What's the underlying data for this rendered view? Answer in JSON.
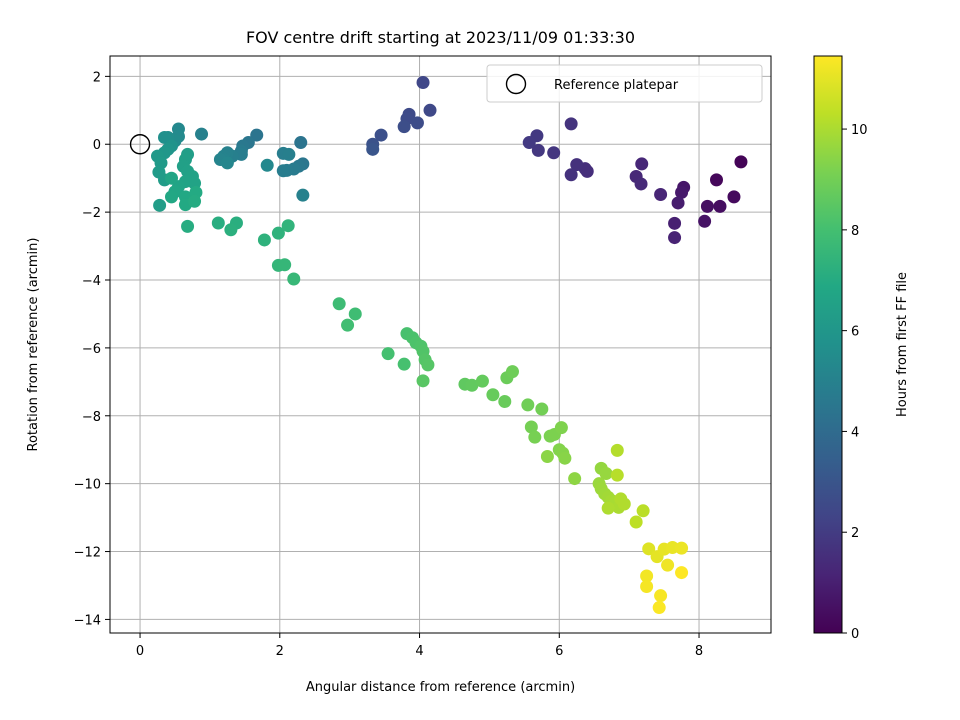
{
  "chart_data": {
    "type": "scatter",
    "title": "FOV centre drift starting at 2023/11/09 01:33:30",
    "xlabel": "Angular distance from reference (arcmin)",
    "ylabel": "Rotation from reference (arcmin)",
    "xlim": [
      -0.43,
      9.03
    ],
    "ylim": [
      -14.4,
      2.6
    ],
    "xticks": [
      0,
      2,
      4,
      6,
      8
    ],
    "yticks": [
      2,
      0,
      -2,
      -4,
      -6,
      -8,
      -10,
      -12,
      -14
    ],
    "xtick_labels": [
      "0",
      "2",
      "4",
      "6",
      "8"
    ],
    "ytick_labels": [
      "2",
      "0",
      "−2",
      "−4",
      "−6",
      "−8",
      "−10",
      "−12",
      "−14"
    ],
    "grid": true,
    "legend": {
      "position": "upper right",
      "entries": [
        "Reference platepar"
      ]
    },
    "reference_point": {
      "x": 0,
      "y": 0,
      "label": "Reference platepar"
    },
    "colorbar": {
      "label": "Hours from first FF file",
      "colormap": "viridis",
      "range": [
        0,
        11.45
      ],
      "ticks": [
        0,
        2,
        4,
        6,
        8,
        10
      ],
      "tick_labels": [
        "0",
        "2",
        "4",
        "6",
        "8",
        "10"
      ]
    },
    "points": [
      {
        "x": 8.6,
        "y": -0.52,
        "c": 0.1
      },
      {
        "x": 8.25,
        "y": -1.05,
        "c": 0.2
      },
      {
        "x": 8.5,
        "y": -1.55,
        "c": 0.3
      },
      {
        "x": 8.3,
        "y": -1.83,
        "c": 0.4
      },
      {
        "x": 8.12,
        "y": -1.83,
        "c": 0.5
      },
      {
        "x": 8.08,
        "y": -2.27,
        "c": 0.6
      },
      {
        "x": 7.78,
        "y": -1.27,
        "c": 0.7
      },
      {
        "x": 7.75,
        "y": -1.42,
        "c": 0.8
      },
      {
        "x": 7.7,
        "y": -1.73,
        "c": 0.9
      },
      {
        "x": 7.65,
        "y": -2.33,
        "c": 1.0
      },
      {
        "x": 7.65,
        "y": -2.75,
        "c": 1.1
      },
      {
        "x": 7.45,
        "y": -1.48,
        "c": 1.2
      },
      {
        "x": 7.18,
        "y": -0.58,
        "c": 1.25
      },
      {
        "x": 7.1,
        "y": -0.95,
        "c": 1.3
      },
      {
        "x": 7.17,
        "y": -1.17,
        "c": 1.35
      },
      {
        "x": 6.4,
        "y": -0.8,
        "c": 1.5
      },
      {
        "x": 6.37,
        "y": -0.72,
        "c": 1.55
      },
      {
        "x": 6.25,
        "y": -0.6,
        "c": 1.6
      },
      {
        "x": 6.17,
        "y": -0.9,
        "c": 1.65
      },
      {
        "x": 6.17,
        "y": 0.6,
        "c": 1.7
      },
      {
        "x": 5.92,
        "y": -0.25,
        "c": 1.8
      },
      {
        "x": 5.7,
        "y": -0.18,
        "c": 1.85
      },
      {
        "x": 5.68,
        "y": 0.25,
        "c": 1.9
      },
      {
        "x": 5.57,
        "y": 0.05,
        "c": 1.95
      },
      {
        "x": 4.05,
        "y": 1.82,
        "c": 2.4
      },
      {
        "x": 4.15,
        "y": 1.0,
        "c": 2.5
      },
      {
        "x": 3.85,
        "y": 0.88,
        "c": 2.55
      },
      {
        "x": 3.82,
        "y": 0.75,
        "c": 2.6
      },
      {
        "x": 3.97,
        "y": 0.63,
        "c": 2.65
      },
      {
        "x": 3.78,
        "y": 0.52,
        "c": 2.7
      },
      {
        "x": 3.45,
        "y": 0.27,
        "c": 2.8
      },
      {
        "x": 3.33,
        "y": 0.0,
        "c": 2.9
      },
      {
        "x": 3.33,
        "y": -0.15,
        "c": 3.0
      },
      {
        "x": 2.3,
        "y": 0.05,
        "c": 4.4
      },
      {
        "x": 2.33,
        "y": -0.58,
        "c": 4.5
      },
      {
        "x": 2.27,
        "y": -0.65,
        "c": 4.6
      },
      {
        "x": 2.2,
        "y": -0.73,
        "c": 4.7
      },
      {
        "x": 2.1,
        "y": -0.77,
        "c": 4.75
      },
      {
        "x": 2.05,
        "y": -0.78,
        "c": 4.8
      },
      {
        "x": 2.05,
        "y": -0.27,
        "c": 4.85
      },
      {
        "x": 2.13,
        "y": -0.3,
        "c": 4.9
      },
      {
        "x": 2.33,
        "y": -1.5,
        "c": 5.0
      },
      {
        "x": 1.67,
        "y": 0.27,
        "c": 4.4
      },
      {
        "x": 1.55,
        "y": 0.05,
        "c": 4.5
      },
      {
        "x": 1.47,
        "y": -0.05,
        "c": 4.6
      },
      {
        "x": 1.45,
        "y": -0.2,
        "c": 4.7
      },
      {
        "x": 1.45,
        "y": -0.3,
        "c": 4.8
      },
      {
        "x": 1.32,
        "y": -0.35,
        "c": 4.9
      },
      {
        "x": 1.25,
        "y": -0.25,
        "c": 5.0
      },
      {
        "x": 1.2,
        "y": -0.35,
        "c": 5.05
      },
      {
        "x": 1.2,
        "y": -0.45,
        "c": 5.1
      },
      {
        "x": 1.15,
        "y": -0.45,
        "c": 5.15
      },
      {
        "x": 1.25,
        "y": -0.55,
        "c": 5.2
      },
      {
        "x": 1.82,
        "y": -0.62,
        "c": 5.3
      },
      {
        "x": 0.88,
        "y": 0.3,
        "c": 5.0
      },
      {
        "x": 0.55,
        "y": 0.45,
        "c": 5.3
      },
      {
        "x": 0.55,
        "y": 0.23,
        "c": 5.4
      },
      {
        "x": 0.5,
        "y": 0.1,
        "c": 5.5
      },
      {
        "x": 0.4,
        "y": 0.2,
        "c": 5.6
      },
      {
        "x": 0.35,
        "y": 0.2,
        "c": 5.7
      },
      {
        "x": 0.45,
        "y": -0.05,
        "c": 5.8
      },
      {
        "x": 0.4,
        "y": -0.15,
        "c": 5.9
      },
      {
        "x": 0.35,
        "y": -0.25,
        "c": 6.0
      },
      {
        "x": 0.25,
        "y": -0.35,
        "c": 6.1
      },
      {
        "x": 0.3,
        "y": -0.55,
        "c": 6.15
      },
      {
        "x": 0.27,
        "y": -0.82,
        "c": 6.2
      },
      {
        "x": 0.35,
        "y": -1.05,
        "c": 6.25
      },
      {
        "x": 0.28,
        "y": -1.8,
        "c": 6.3
      },
      {
        "x": 0.68,
        "y": -0.3,
        "c": 6.35
      },
      {
        "x": 0.65,
        "y": -0.45,
        "c": 6.4
      },
      {
        "x": 0.62,
        "y": -0.65,
        "c": 6.45
      },
      {
        "x": 0.68,
        "y": -0.8,
        "c": 6.5
      },
      {
        "x": 0.75,
        "y": -0.95,
        "c": 6.55
      },
      {
        "x": 0.78,
        "y": -1.15,
        "c": 6.6
      },
      {
        "x": 0.65,
        "y": -1.1,
        "c": 6.6
      },
      {
        "x": 0.55,
        "y": -1.25,
        "c": 6.65
      },
      {
        "x": 0.45,
        "y": -1.0,
        "c": 6.7
      },
      {
        "x": 0.5,
        "y": -1.4,
        "c": 6.75
      },
      {
        "x": 0.45,
        "y": -1.55,
        "c": 6.8
      },
      {
        "x": 0.65,
        "y": -1.55,
        "c": 6.85
      },
      {
        "x": 0.65,
        "y": -1.78,
        "c": 6.9
      },
      {
        "x": 0.8,
        "y": -1.42,
        "c": 6.95
      },
      {
        "x": 0.78,
        "y": -1.68,
        "c": 7.0
      },
      {
        "x": 0.68,
        "y": -2.42,
        "c": 7.05
      },
      {
        "x": 1.12,
        "y": -2.32,
        "c": 7.1
      },
      {
        "x": 1.38,
        "y": -2.32,
        "c": 7.15
      },
      {
        "x": 1.3,
        "y": -2.52,
        "c": 7.2
      },
      {
        "x": 1.78,
        "y": -2.82,
        "c": 7.3
      },
      {
        "x": 1.98,
        "y": -2.62,
        "c": 7.35
      },
      {
        "x": 2.12,
        "y": -2.4,
        "c": 7.4
      },
      {
        "x": 1.98,
        "y": -3.57,
        "c": 7.5
      },
      {
        "x": 2.07,
        "y": -3.55,
        "c": 7.55
      },
      {
        "x": 2.2,
        "y": -3.97,
        "c": 7.6
      },
      {
        "x": 2.85,
        "y": -4.7,
        "c": 7.8
      },
      {
        "x": 3.08,
        "y": -5.0,
        "c": 7.85
      },
      {
        "x": 2.97,
        "y": -5.33,
        "c": 7.9
      },
      {
        "x": 3.55,
        "y": -6.17,
        "c": 8.0
      },
      {
        "x": 3.78,
        "y": -6.48,
        "c": 8.05
      },
      {
        "x": 3.82,
        "y": -5.58,
        "c": 8.1
      },
      {
        "x": 3.9,
        "y": -5.7,
        "c": 8.15
      },
      {
        "x": 3.95,
        "y": -5.85,
        "c": 8.2
      },
      {
        "x": 4.02,
        "y": -5.95,
        "c": 8.25
      },
      {
        "x": 4.05,
        "y": -6.1,
        "c": 8.3
      },
      {
        "x": 4.08,
        "y": -6.35,
        "c": 8.35
      },
      {
        "x": 4.12,
        "y": -6.5,
        "c": 8.4
      },
      {
        "x": 4.05,
        "y": -6.97,
        "c": 8.45
      },
      {
        "x": 4.65,
        "y": -7.07,
        "c": 8.6
      },
      {
        "x": 4.75,
        "y": -7.1,
        "c": 8.65
      },
      {
        "x": 4.9,
        "y": -6.98,
        "c": 8.7
      },
      {
        "x": 5.05,
        "y": -7.38,
        "c": 8.75
      },
      {
        "x": 5.22,
        "y": -7.58,
        "c": 8.8
      },
      {
        "x": 5.25,
        "y": -6.88,
        "c": 8.85
      },
      {
        "x": 5.33,
        "y": -6.7,
        "c": 8.9
      },
      {
        "x": 5.55,
        "y": -7.68,
        "c": 8.95
      },
      {
        "x": 5.75,
        "y": -7.8,
        "c": 9.0
      },
      {
        "x": 5.6,
        "y": -8.33,
        "c": 9.05
      },
      {
        "x": 5.65,
        "y": -8.63,
        "c": 9.1
      },
      {
        "x": 5.87,
        "y": -8.6,
        "c": 9.15
      },
      {
        "x": 5.93,
        "y": -8.55,
        "c": 9.2
      },
      {
        "x": 6.03,
        "y": -8.35,
        "c": 9.25
      },
      {
        "x": 6.0,
        "y": -9.0,
        "c": 9.3
      },
      {
        "x": 6.05,
        "y": -9.1,
        "c": 9.35
      },
      {
        "x": 6.08,
        "y": -9.25,
        "c": 9.4
      },
      {
        "x": 5.83,
        "y": -9.2,
        "c": 9.45
      },
      {
        "x": 6.22,
        "y": -9.85,
        "c": 9.5
      },
      {
        "x": 6.6,
        "y": -9.55,
        "c": 9.6
      },
      {
        "x": 6.67,
        "y": -9.7,
        "c": 9.65
      },
      {
        "x": 6.57,
        "y": -10.0,
        "c": 9.7
      },
      {
        "x": 6.6,
        "y": -10.15,
        "c": 9.75
      },
      {
        "x": 6.65,
        "y": -10.3,
        "c": 9.8
      },
      {
        "x": 6.7,
        "y": -10.4,
        "c": 9.85
      },
      {
        "x": 6.75,
        "y": -10.5,
        "c": 9.9
      },
      {
        "x": 6.8,
        "y": -10.55,
        "c": 9.95
      },
      {
        "x": 6.85,
        "y": -10.7,
        "c": 10.0
      },
      {
        "x": 6.7,
        "y": -10.72,
        "c": 10.05
      },
      {
        "x": 6.93,
        "y": -10.6,
        "c": 10.1
      },
      {
        "x": 6.88,
        "y": -10.45,
        "c": 10.1
      },
      {
        "x": 6.83,
        "y": -9.02,
        "c": 10.15
      },
      {
        "x": 6.83,
        "y": -9.75,
        "c": 10.2
      },
      {
        "x": 7.2,
        "y": -10.8,
        "c": 10.25
      },
      {
        "x": 7.1,
        "y": -11.13,
        "c": 10.3
      },
      {
        "x": 7.28,
        "y": -11.92,
        "c": 10.9
      },
      {
        "x": 7.4,
        "y": -12.15,
        "c": 11.0
      },
      {
        "x": 7.5,
        "y": -11.93,
        "c": 11.05
      },
      {
        "x": 7.62,
        "y": -11.88,
        "c": 11.1
      },
      {
        "x": 7.75,
        "y": -11.9,
        "c": 11.15
      },
      {
        "x": 7.55,
        "y": -12.4,
        "c": 11.2
      },
      {
        "x": 7.25,
        "y": -12.72,
        "c": 11.25
      },
      {
        "x": 7.25,
        "y": -13.03,
        "c": 11.3
      },
      {
        "x": 7.45,
        "y": -13.3,
        "c": 11.35
      },
      {
        "x": 7.43,
        "y": -13.65,
        "c": 11.4
      },
      {
        "x": 7.75,
        "y": -12.62,
        "c": 11.45
      }
    ]
  }
}
